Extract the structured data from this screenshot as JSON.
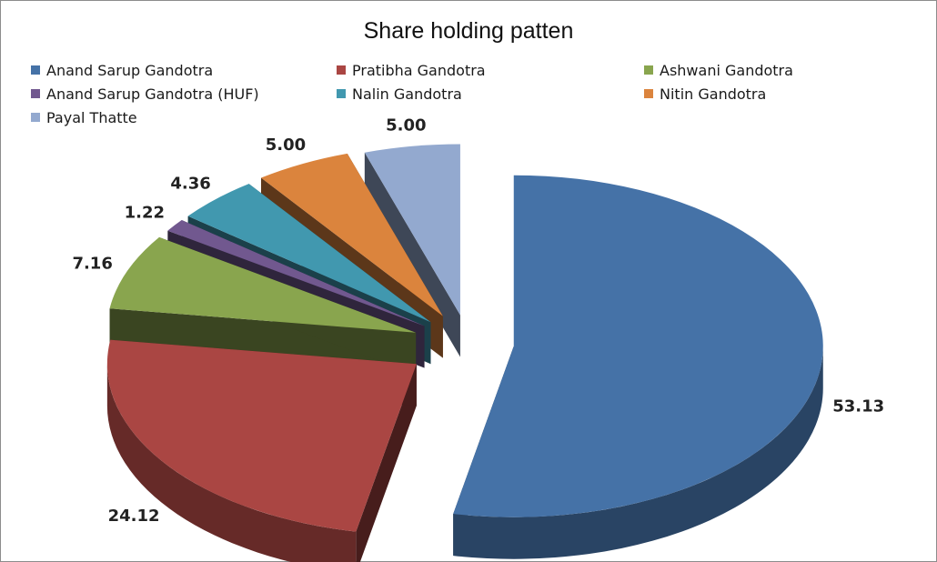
{
  "chart_data": {
    "type": "pie",
    "title": "Share holding patten",
    "legend_position": "top",
    "categories": [
      "Anand Sarup Gandotra",
      "Pratibha Gandotra",
      "Ashwani Gandotra",
      "Anand Sarup Gandotra (HUF)",
      "Nalin Gandotra",
      "Nitin Gandotra",
      "Payal Thatte"
    ],
    "values": [
      53.13,
      24.12,
      7.16,
      1.22,
      4.36,
      5.0,
      5.0
    ],
    "labels": [
      "53.13",
      "24.12",
      "7.16",
      "1.22",
      "4.36",
      "5.00",
      "5.00"
    ],
    "colors": [
      "#4572a7",
      "#aa4643",
      "#89a54e",
      "#71588f",
      "#4198af",
      "#db843d",
      "#93a9cf"
    ],
    "exploded": true,
    "three_d": true
  }
}
